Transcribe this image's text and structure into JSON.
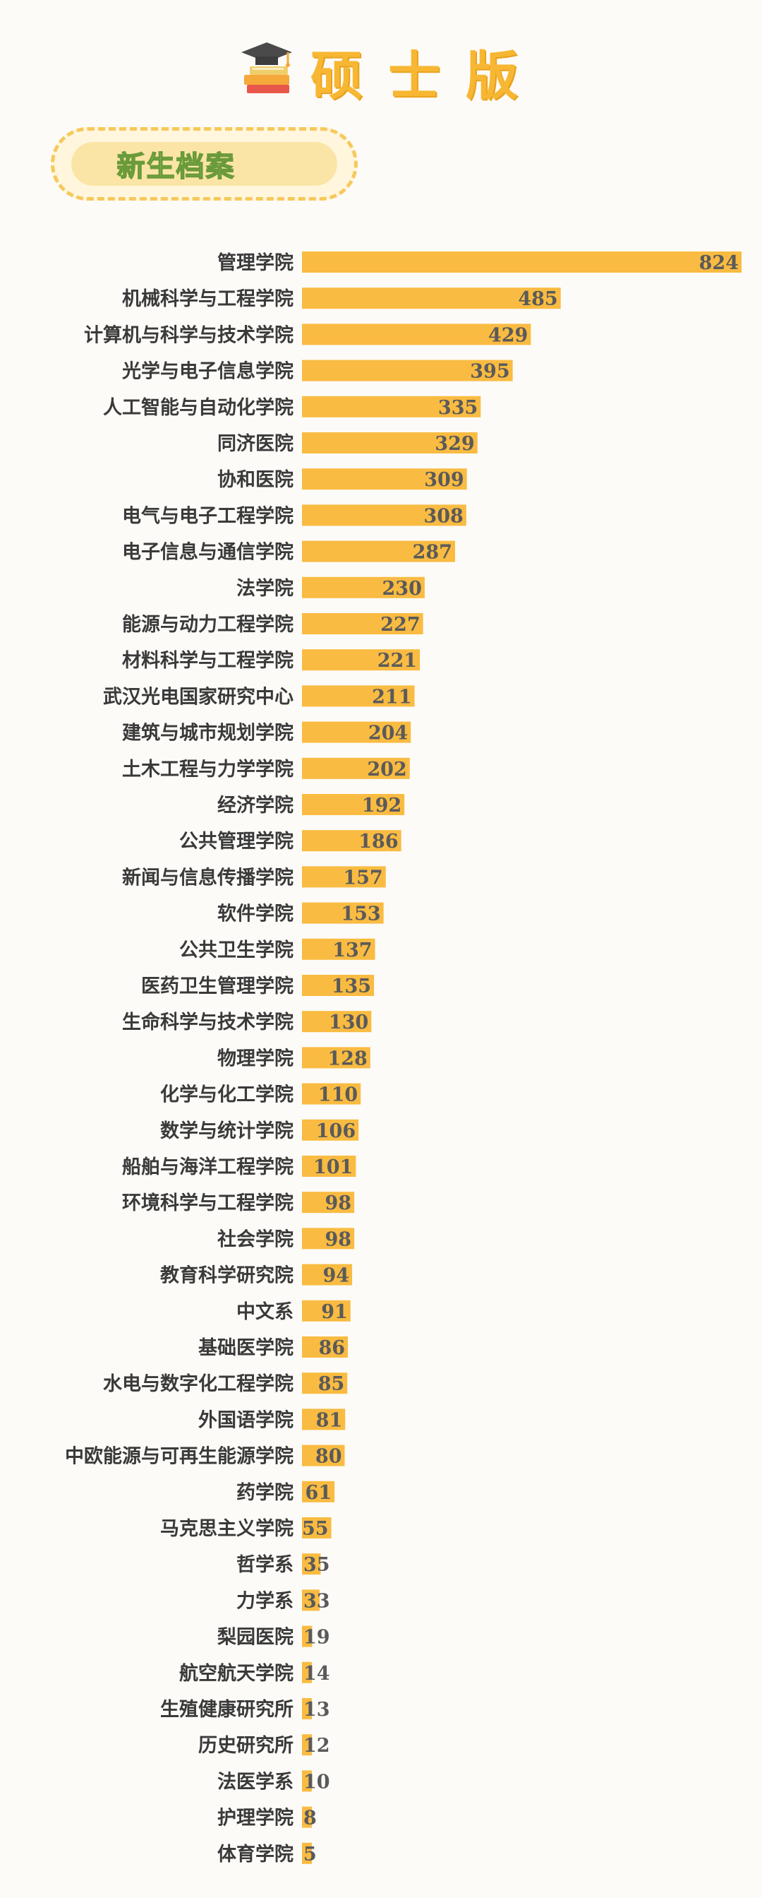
{
  "header": {
    "title": "硕士版",
    "icon": "graduation-cap-books-icon"
  },
  "badge": {
    "label": "新生档案"
  },
  "colors": {
    "bar": "#f9bb41",
    "title": "#f7b733",
    "badge_border": "#f6c95c",
    "badge_fill": "#fbe5a6"
  },
  "chart_data": {
    "type": "bar",
    "orientation": "horizontal",
    "categories": [
      "管理学院",
      "机械科学与工程学院",
      "计算机与科学与技术学院",
      "光学与电子信息学院",
      "人工智能与自动化学院",
      "同济医院",
      "协和医院",
      "电气与电子工程学院",
      "电子信息与通信学院",
      "法学院",
      "能源与动力工程学院",
      "材料科学与工程学院",
      "武汉光电国家研究中心",
      "建筑与城市规划学院",
      "土木工程与力学学院",
      "经济学院",
      "公共管理学院",
      "新闻与信息传播学院",
      "软件学院",
      "公共卫生学院",
      "医药卫生管理学院",
      "生命科学与技术学院",
      "物理学院",
      "化学与化工学院",
      "数学与统计学院",
      "船舶与海洋工程学院",
      "环境科学与工程学院",
      "社会学院",
      "教育科学研究院",
      "中文系",
      "基础医学院",
      "水电与数字化工程学院",
      "外国语学院",
      "中欧能源与可再生能源学院",
      "药学院",
      "马克思主义学院",
      "哲学系",
      "力学系",
      "梨园医院",
      "航空航天学院",
      "生殖健康研究所",
      "历史研究所",
      "法医学系",
      "护理学院",
      "体育学院"
    ],
    "values": [
      824,
      485,
      429,
      395,
      335,
      329,
      309,
      308,
      287,
      230,
      227,
      221,
      211,
      204,
      202,
      192,
      186,
      157,
      153,
      137,
      135,
      130,
      128,
      110,
      106,
      101,
      98,
      98,
      94,
      91,
      86,
      85,
      81,
      80,
      61,
      55,
      35,
      33,
      19,
      14,
      13,
      12,
      10,
      8,
      5
    ],
    "title": "",
    "xlabel": "",
    "ylabel": "",
    "xlim": [
      0,
      824
    ],
    "grid": false,
    "legend": "none"
  }
}
